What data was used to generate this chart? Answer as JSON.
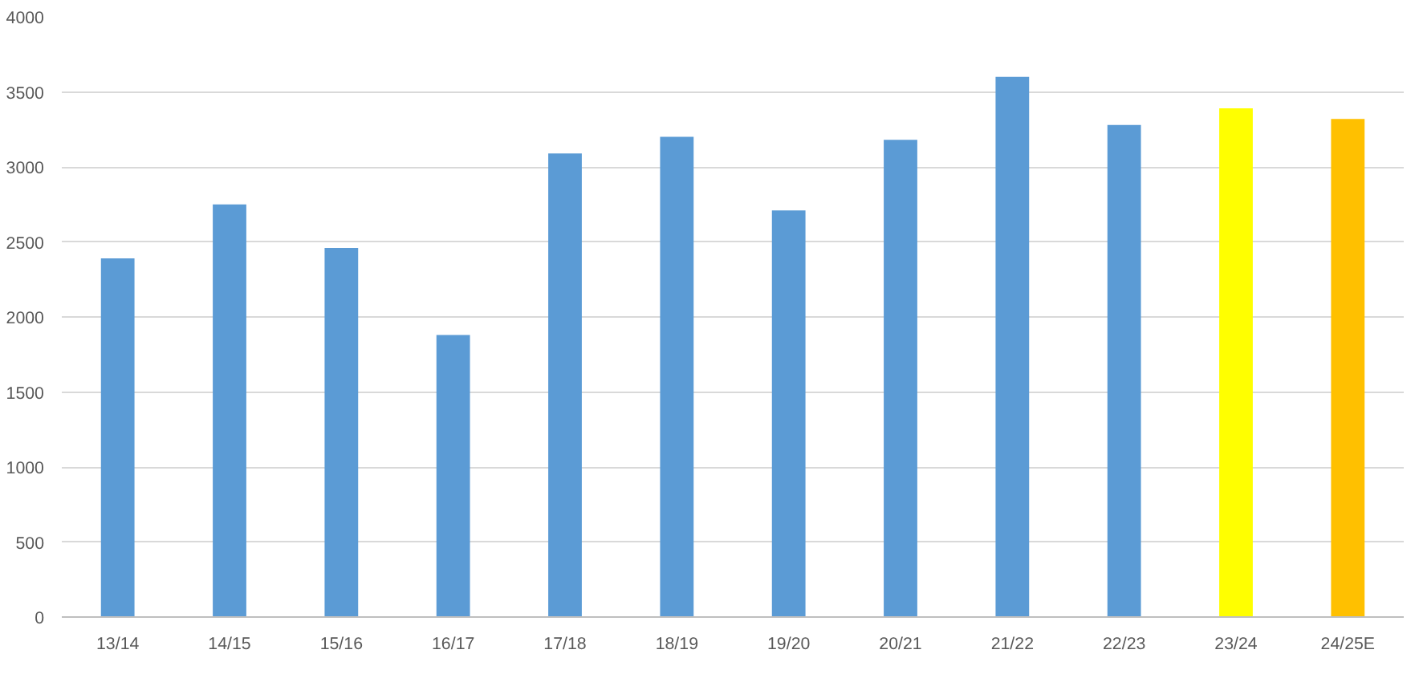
{
  "chart_data": {
    "type": "bar",
    "categories": [
      "13/14",
      "14/15",
      "15/16",
      "16/17",
      "17/18",
      "18/19",
      "19/20",
      "20/21",
      "21/22",
      "22/23",
      "23/24",
      "24/25E"
    ],
    "values": [
      2390,
      2750,
      2460,
      1880,
      3090,
      3200,
      2710,
      3180,
      3600,
      3280,
      3390,
      3320
    ],
    "colors": [
      "#5b9bd5",
      "#5b9bd5",
      "#5b9bd5",
      "#5b9bd5",
      "#5b9bd5",
      "#5b9bd5",
      "#5b9bd5",
      "#5b9bd5",
      "#5b9bd5",
      "#5b9bd5",
      "#ffff00",
      "#ffc000"
    ],
    "ylim": [
      0,
      4000
    ],
    "yticks": [
      0,
      500,
      1000,
      1500,
      2000,
      2500,
      3000,
      3500,
      4000
    ],
    "grid": "y"
  }
}
